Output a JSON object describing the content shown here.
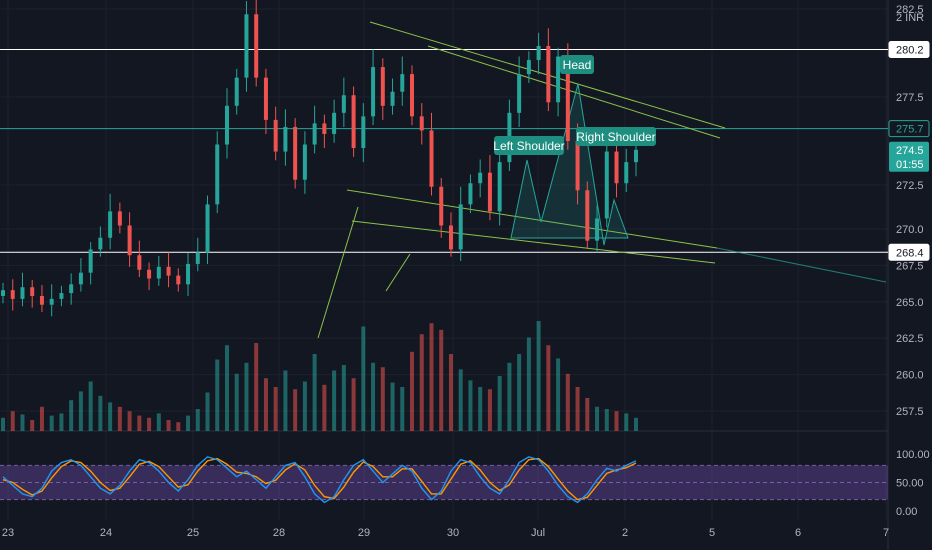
{
  "currency_label": "2 INR",
  "chart_data": {
    "type": "candlestick",
    "symbol_currency": "INR",
    "y_ticks": [
      "282.5",
      "277.5",
      "272.5",
      "270.0",
      "267.5",
      "265.0",
      "262.5",
      "260.0",
      "257.5"
    ],
    "y_range": [
      255.6,
      284.8
    ],
    "x_ticks": [
      "23",
      "24",
      "25",
      "28",
      "29",
      "30",
      "Jul",
      "2",
      "5",
      "6",
      "7"
    ],
    "price_levels": [
      {
        "value": 280.2,
        "label": "280.2",
        "style": "resistance",
        "color": "#ffffff"
      },
      {
        "value": 275.7,
        "label": "275.7",
        "style": "line",
        "color": "#26a69a"
      },
      {
        "value": 268.4,
        "label": "268.4",
        "style": "support",
        "color": "#ffffff"
      }
    ],
    "last_price": {
      "value": 274.5,
      "label": "274.5",
      "countdown": "01:55",
      "color": "#26a69a"
    },
    "annotations": [
      "Left Shoulder",
      "Head",
      "Right Shoulder"
    ],
    "candles_close": [
      265.8,
      265.2,
      266.0,
      265.4,
      264.8,
      265.2,
      265.6,
      266.2,
      267.0,
      268.6,
      269.4,
      271.0,
      270.2,
      268.2,
      267.2,
      266.6,
      267.4,
      266.8,
      266.2,
      267.6,
      268.4,
      271.4,
      274.8,
      277.0,
      278.6,
      282.2,
      278.6,
      276.2,
      274.4,
      275.8,
      272.8,
      274.8,
      276.0,
      275.4,
      276.6,
      277.6,
      274.6,
      276.4,
      279.2,
      277.0,
      277.8,
      278.8,
      276.4,
      275.6,
      272.4,
      270.2,
      268.6,
      271.4,
      272.6,
      273.2,
      271.0,
      273.8,
      276.6,
      278.8,
      279.6,
      280.4,
      277.2,
      279.8,
      275.0,
      272.2,
      269.2,
      270.6,
      274.4,
      272.6,
      273.8,
      274.5
    ],
    "volume_relative": [
      0.12,
      0.18,
      0.15,
      0.1,
      0.22,
      0.14,
      0.16,
      0.28,
      0.36,
      0.45,
      0.32,
      0.26,
      0.22,
      0.18,
      0.14,
      0.12,
      0.16,
      0.1,
      0.08,
      0.14,
      0.2,
      0.35,
      0.65,
      0.78,
      0.52,
      0.62,
      0.8,
      0.48,
      0.4,
      0.55,
      0.38,
      0.45,
      0.7,
      0.42,
      0.55,
      0.6,
      0.48,
      0.95,
      0.62,
      0.58,
      0.44,
      0.4,
      0.72,
      0.88,
      0.98,
      0.92,
      0.7,
      0.56,
      0.46,
      0.4,
      0.38,
      0.5,
      0.62,
      0.7,
      0.85,
      1.0,
      0.78,
      0.66,
      0.52,
      0.4,
      0.3,
      0.22,
      0.2,
      0.18,
      0.16,
      0.12
    ],
    "oscillator": {
      "y_ticks": [
        "100.00",
        "50.00",
        "0.00"
      ],
      "band": [
        20,
        80
      ],
      "k": [
        60,
        45,
        30,
        25,
        40,
        70,
        85,
        90,
        80,
        60,
        40,
        30,
        45,
        70,
        90,
        85,
        70,
        50,
        35,
        55,
        80,
        95,
        90,
        75,
        60,
        70,
        55,
        40,
        60,
        80,
        85,
        60,
        30,
        15,
        25,
        55,
        80,
        90,
        70,
        50,
        65,
        80,
        70,
        40,
        20,
        35,
        70,
        90,
        85,
        60,
        40,
        30,
        55,
        85,
        95,
        90,
        70,
        45,
        25,
        15,
        30,
        55,
        75,
        70,
        80,
        88
      ],
      "d": [
        55,
        50,
        38,
        28,
        35,
        58,
        78,
        88,
        85,
        70,
        50,
        36,
        40,
        60,
        82,
        87,
        78,
        60,
        42,
        46,
        70,
        88,
        92,
        82,
        68,
        66,
        60,
        48,
        54,
        72,
        83,
        72,
        45,
        25,
        22,
        42,
        68,
        86,
        78,
        60,
        60,
        74,
        74,
        52,
        30,
        30,
        56,
        82,
        88,
        72,
        50,
        36,
        46,
        72,
        90,
        92,
        78,
        56,
        35,
        20,
        24,
        45,
        66,
        72,
        76,
        84
      ]
    }
  }
}
